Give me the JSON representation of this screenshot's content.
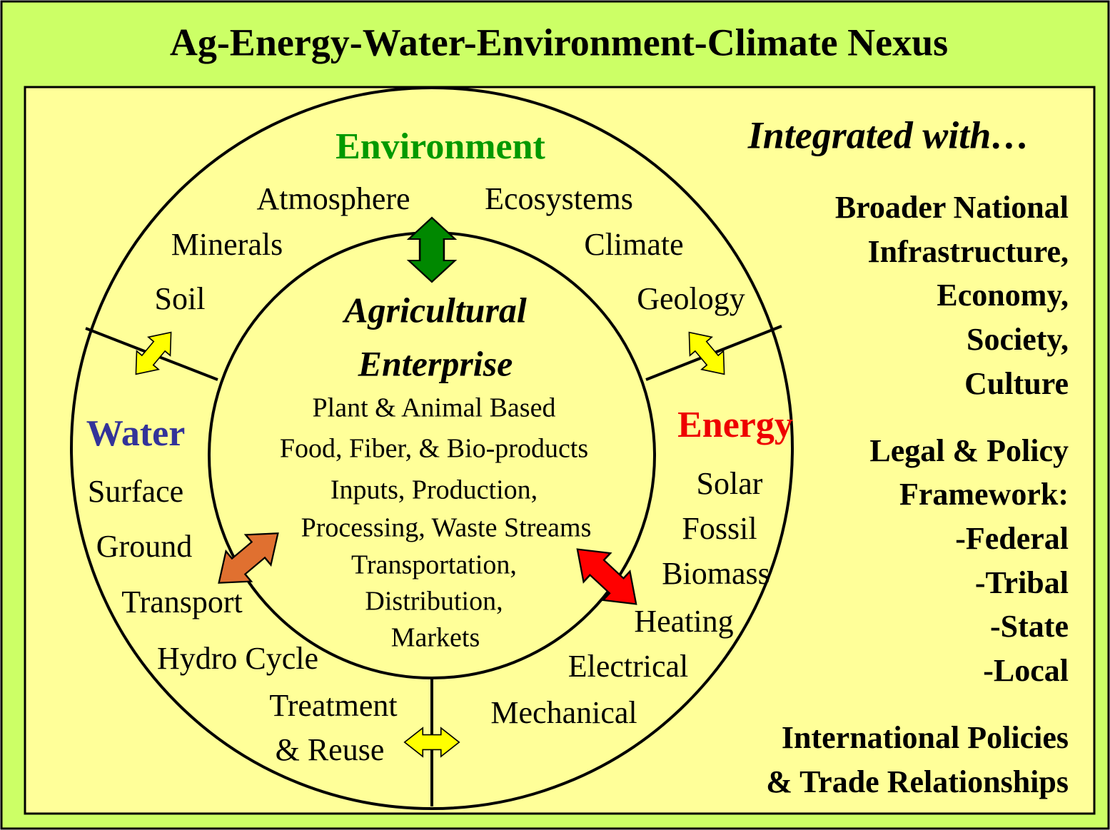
{
  "title": "Ag-Energy-Water-Environment-Climate Nexus",
  "environment": {
    "heading": "Environment",
    "items": [
      "Atmosphere",
      "Ecosystems",
      "Minerals",
      "Climate",
      "Soil",
      "Geology"
    ]
  },
  "water": {
    "heading": "Water",
    "items": [
      "Surface",
      "Ground",
      "Transport",
      "Hydro Cycle",
      "Treatment",
      "& Reuse"
    ]
  },
  "energy": {
    "heading": "Energy",
    "items": [
      "Solar",
      "Fossil",
      "Biomass",
      "Heating",
      "Electrical",
      "Mechanical"
    ]
  },
  "center": {
    "title": [
      "Agricultural",
      "Enterprise"
    ],
    "lines": [
      "Plant & Animal Based",
      "Food, Fiber, & Bio-products",
      "Inputs, Production,",
      "Processing, Waste Streams",
      "Transportation,",
      "Distribution,",
      "Markets"
    ]
  },
  "integrated": {
    "heading": "Integrated with…",
    "lines": [
      "Broader National",
      "Infrastructure,",
      "Economy,",
      "Society,",
      "Culture",
      "Legal & Policy",
      "Framework:",
      "-Federal",
      "-Tribal",
      "-State",
      "-Local",
      "International Policies",
      "& Trade Relationships"
    ]
  }
}
